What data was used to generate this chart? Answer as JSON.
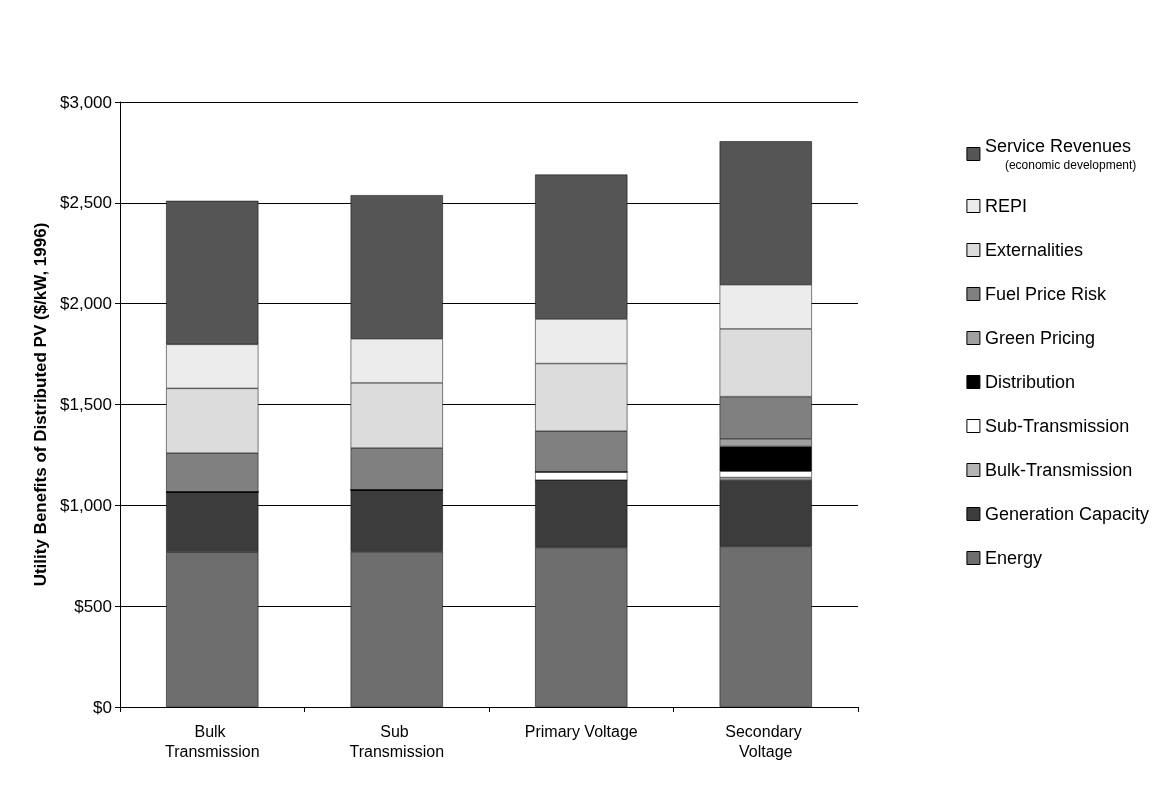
{
  "chart_data": {
    "type": "bar",
    "stacked": true,
    "ylabel": "Utility Benefits of Distributed PV ($/kW, 1996)",
    "categories": [
      "Bulk Transmission",
      "Sub Transmission",
      "Primary Voltage",
      "Secondary Voltage"
    ],
    "series": [
      {
        "name": "Energy",
        "color": "#6e6e6e",
        "values": [
          768,
          770,
          791,
          796
        ]
      },
      {
        "name": "Generation Capacity",
        "color": "#3c3c3c",
        "values": [
          299,
          307,
          334,
          329
        ]
      },
      {
        "name": "Bulk-Transmission",
        "color": "#b4b4b4",
        "values": [
          0,
          0,
          0,
          13
        ]
      },
      {
        "name": "Sub-Transmission",
        "color": "#ffffff",
        "values": [
          0,
          0,
          41,
          31
        ]
      },
      {
        "name": "Distribution",
        "color": "#000000",
        "values": [
          0,
          0,
          0,
          123
        ]
      },
      {
        "name": "Green Pricing",
        "color": "#a0a0a0",
        "values": [
          0,
          0,
          0,
          38
        ]
      },
      {
        "name": "Fuel Price Risk",
        "color": "#808080",
        "values": [
          192,
          207,
          202,
          209
        ]
      },
      {
        "name": "Externalities",
        "color": "#dcdcdc",
        "values": [
          321,
          323,
          335,
          336
        ]
      },
      {
        "name": "REPI",
        "color": "#ececec",
        "values": [
          218,
          219,
          221,
          219
        ]
      },
      {
        "name": "Service Revenues\n(economic development)",
        "color": "#555555",
        "values": [
          712,
          712,
          716,
          711
        ]
      }
    ],
    "ylim": [
      0,
      3000
    ],
    "yticks": [
      {
        "value": 0,
        "label": "$0"
      },
      {
        "value": 500,
        "label": "$500"
      },
      {
        "value": 1000,
        "label": "$1,000"
      },
      {
        "value": 1500,
        "label": "$1,500"
      },
      {
        "value": 2000,
        "label": "$2,000"
      },
      {
        "value": 2500,
        "label": "$2,500"
      },
      {
        "value": 3000,
        "label": "$3,000"
      }
    ],
    "grid": "y",
    "legend": "right"
  }
}
